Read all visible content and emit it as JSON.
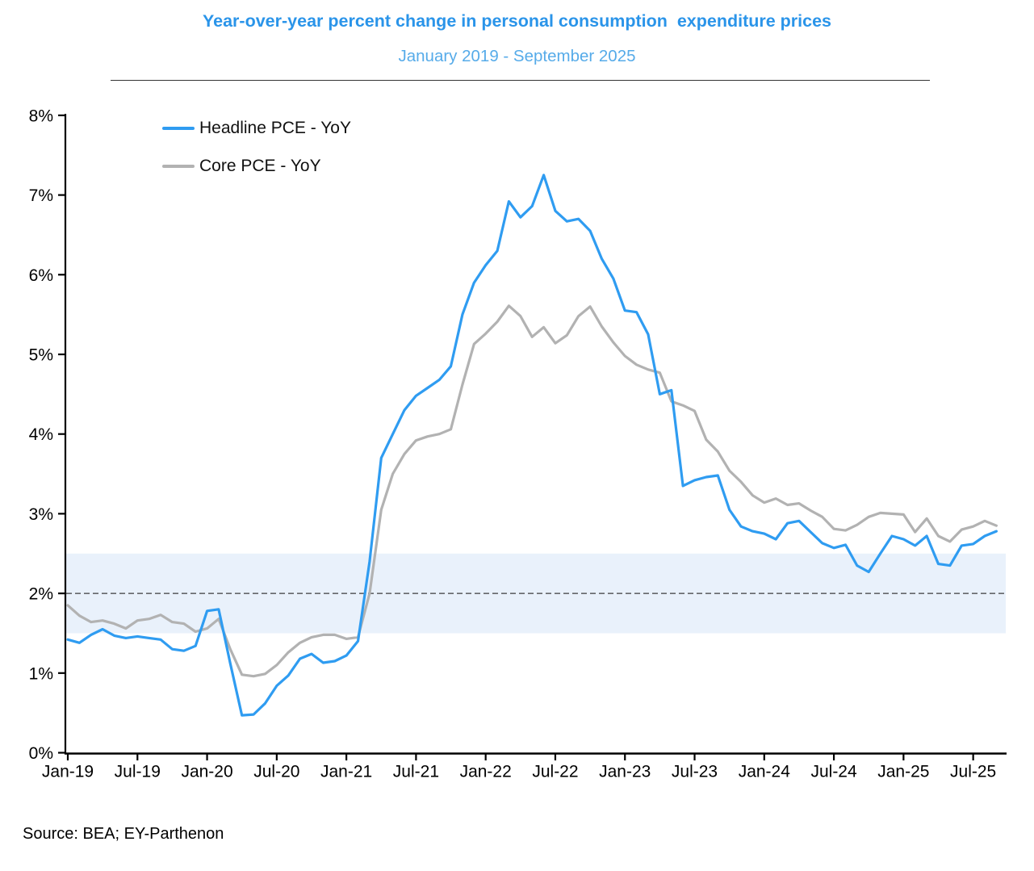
{
  "header": {
    "title": "Year-over-year percent change in personal consumption  expenditure prices",
    "subtitle": "January 2019 - September 2025"
  },
  "legend": [
    {
      "label": "Headline PCE - YoY",
      "color": "#2f9cf1"
    },
    {
      "label": "Core PCE - YoY",
      "color": "#b2b2b2"
    }
  ],
  "source": "Source: BEA; EY-Parthenon",
  "chart_data": {
    "type": "line",
    "title": "Year-over-year percent change in personal consumption expenditure prices",
    "subtitle": "January 2019 - September 2025",
    "x_unit": "month",
    "x_start": "Jan-2019",
    "x_end": "Sep-2025",
    "x_tick_labels": [
      "Jan-19",
      "Jul-19",
      "Jan-20",
      "Jul-20",
      "Jan-21",
      "Jul-21",
      "Jan-22",
      "Jul-22",
      "Jan-23",
      "Jul-23",
      "Jan-24",
      "Jul-24",
      "Jan-25",
      "Jul-25"
    ],
    "y_tick_labels": [
      "0%",
      "1%",
      "2%",
      "3%",
      "4%",
      "5%",
      "6%",
      "7%",
      "8%"
    ],
    "ylim": [
      0,
      8
    ],
    "grid": false,
    "legend_position": "top-left-inside",
    "target_band": {
      "from": 1.5,
      "to": 2.5,
      "color": "#e9f1fb"
    },
    "dashed_reference_line": 2.0,
    "series": [
      {
        "name": "Headline PCE - YoY",
        "color": "#2f9cf1",
        "values": [
          1.42,
          1.38,
          1.48,
          1.55,
          1.47,
          1.44,
          1.46,
          1.44,
          1.42,
          1.3,
          1.28,
          1.34,
          1.78,
          1.8,
          1.12,
          0.47,
          0.48,
          0.62,
          0.84,
          0.97,
          1.18,
          1.24,
          1.13,
          1.15,
          1.22,
          1.4,
          2.4,
          3.7,
          4.0,
          4.3,
          4.48,
          4.58,
          4.68,
          4.85,
          5.5,
          5.9,
          6.12,
          6.3,
          6.92,
          6.72,
          6.86,
          7.25,
          6.8,
          6.67,
          6.7,
          6.55,
          6.2,
          5.95,
          5.55,
          5.53,
          5.25,
          4.5,
          4.55,
          3.35,
          3.42,
          3.46,
          3.48,
          3.05,
          2.84,
          2.78,
          2.75,
          2.68,
          2.88,
          2.91,
          2.77,
          2.63,
          2.57,
          2.61,
          2.35,
          2.27,
          2.5,
          2.72,
          2.68,
          2.6,
          2.72,
          2.37,
          2.35,
          2.6,
          2.62,
          2.72,
          2.78
        ]
      },
      {
        "name": "Core PCE - YoY",
        "color": "#b2b2b2",
        "values": [
          1.85,
          1.72,
          1.64,
          1.66,
          1.62,
          1.56,
          1.66,
          1.68,
          1.73,
          1.64,
          1.62,
          1.52,
          1.56,
          1.68,
          1.3,
          0.98,
          0.96,
          0.99,
          1.1,
          1.26,
          1.38,
          1.45,
          1.48,
          1.48,
          1.43,
          1.45,
          2.0,
          3.05,
          3.5,
          3.75,
          3.92,
          3.97,
          4.0,
          4.06,
          4.62,
          5.13,
          5.26,
          5.41,
          5.61,
          5.48,
          5.22,
          5.34,
          5.14,
          5.24,
          5.48,
          5.6,
          5.35,
          5.15,
          4.98,
          4.87,
          4.81,
          4.77,
          4.41,
          4.36,
          4.29,
          3.93,
          3.78,
          3.54,
          3.4,
          3.23,
          3.14,
          3.19,
          3.11,
          3.13,
          3.04,
          2.96,
          2.81,
          2.79,
          2.86,
          2.96,
          3.01,
          3.0,
          2.99,
          2.77,
          2.94,
          2.72,
          2.65,
          2.8,
          2.84,
          2.91,
          2.85
        ]
      }
    ]
  }
}
